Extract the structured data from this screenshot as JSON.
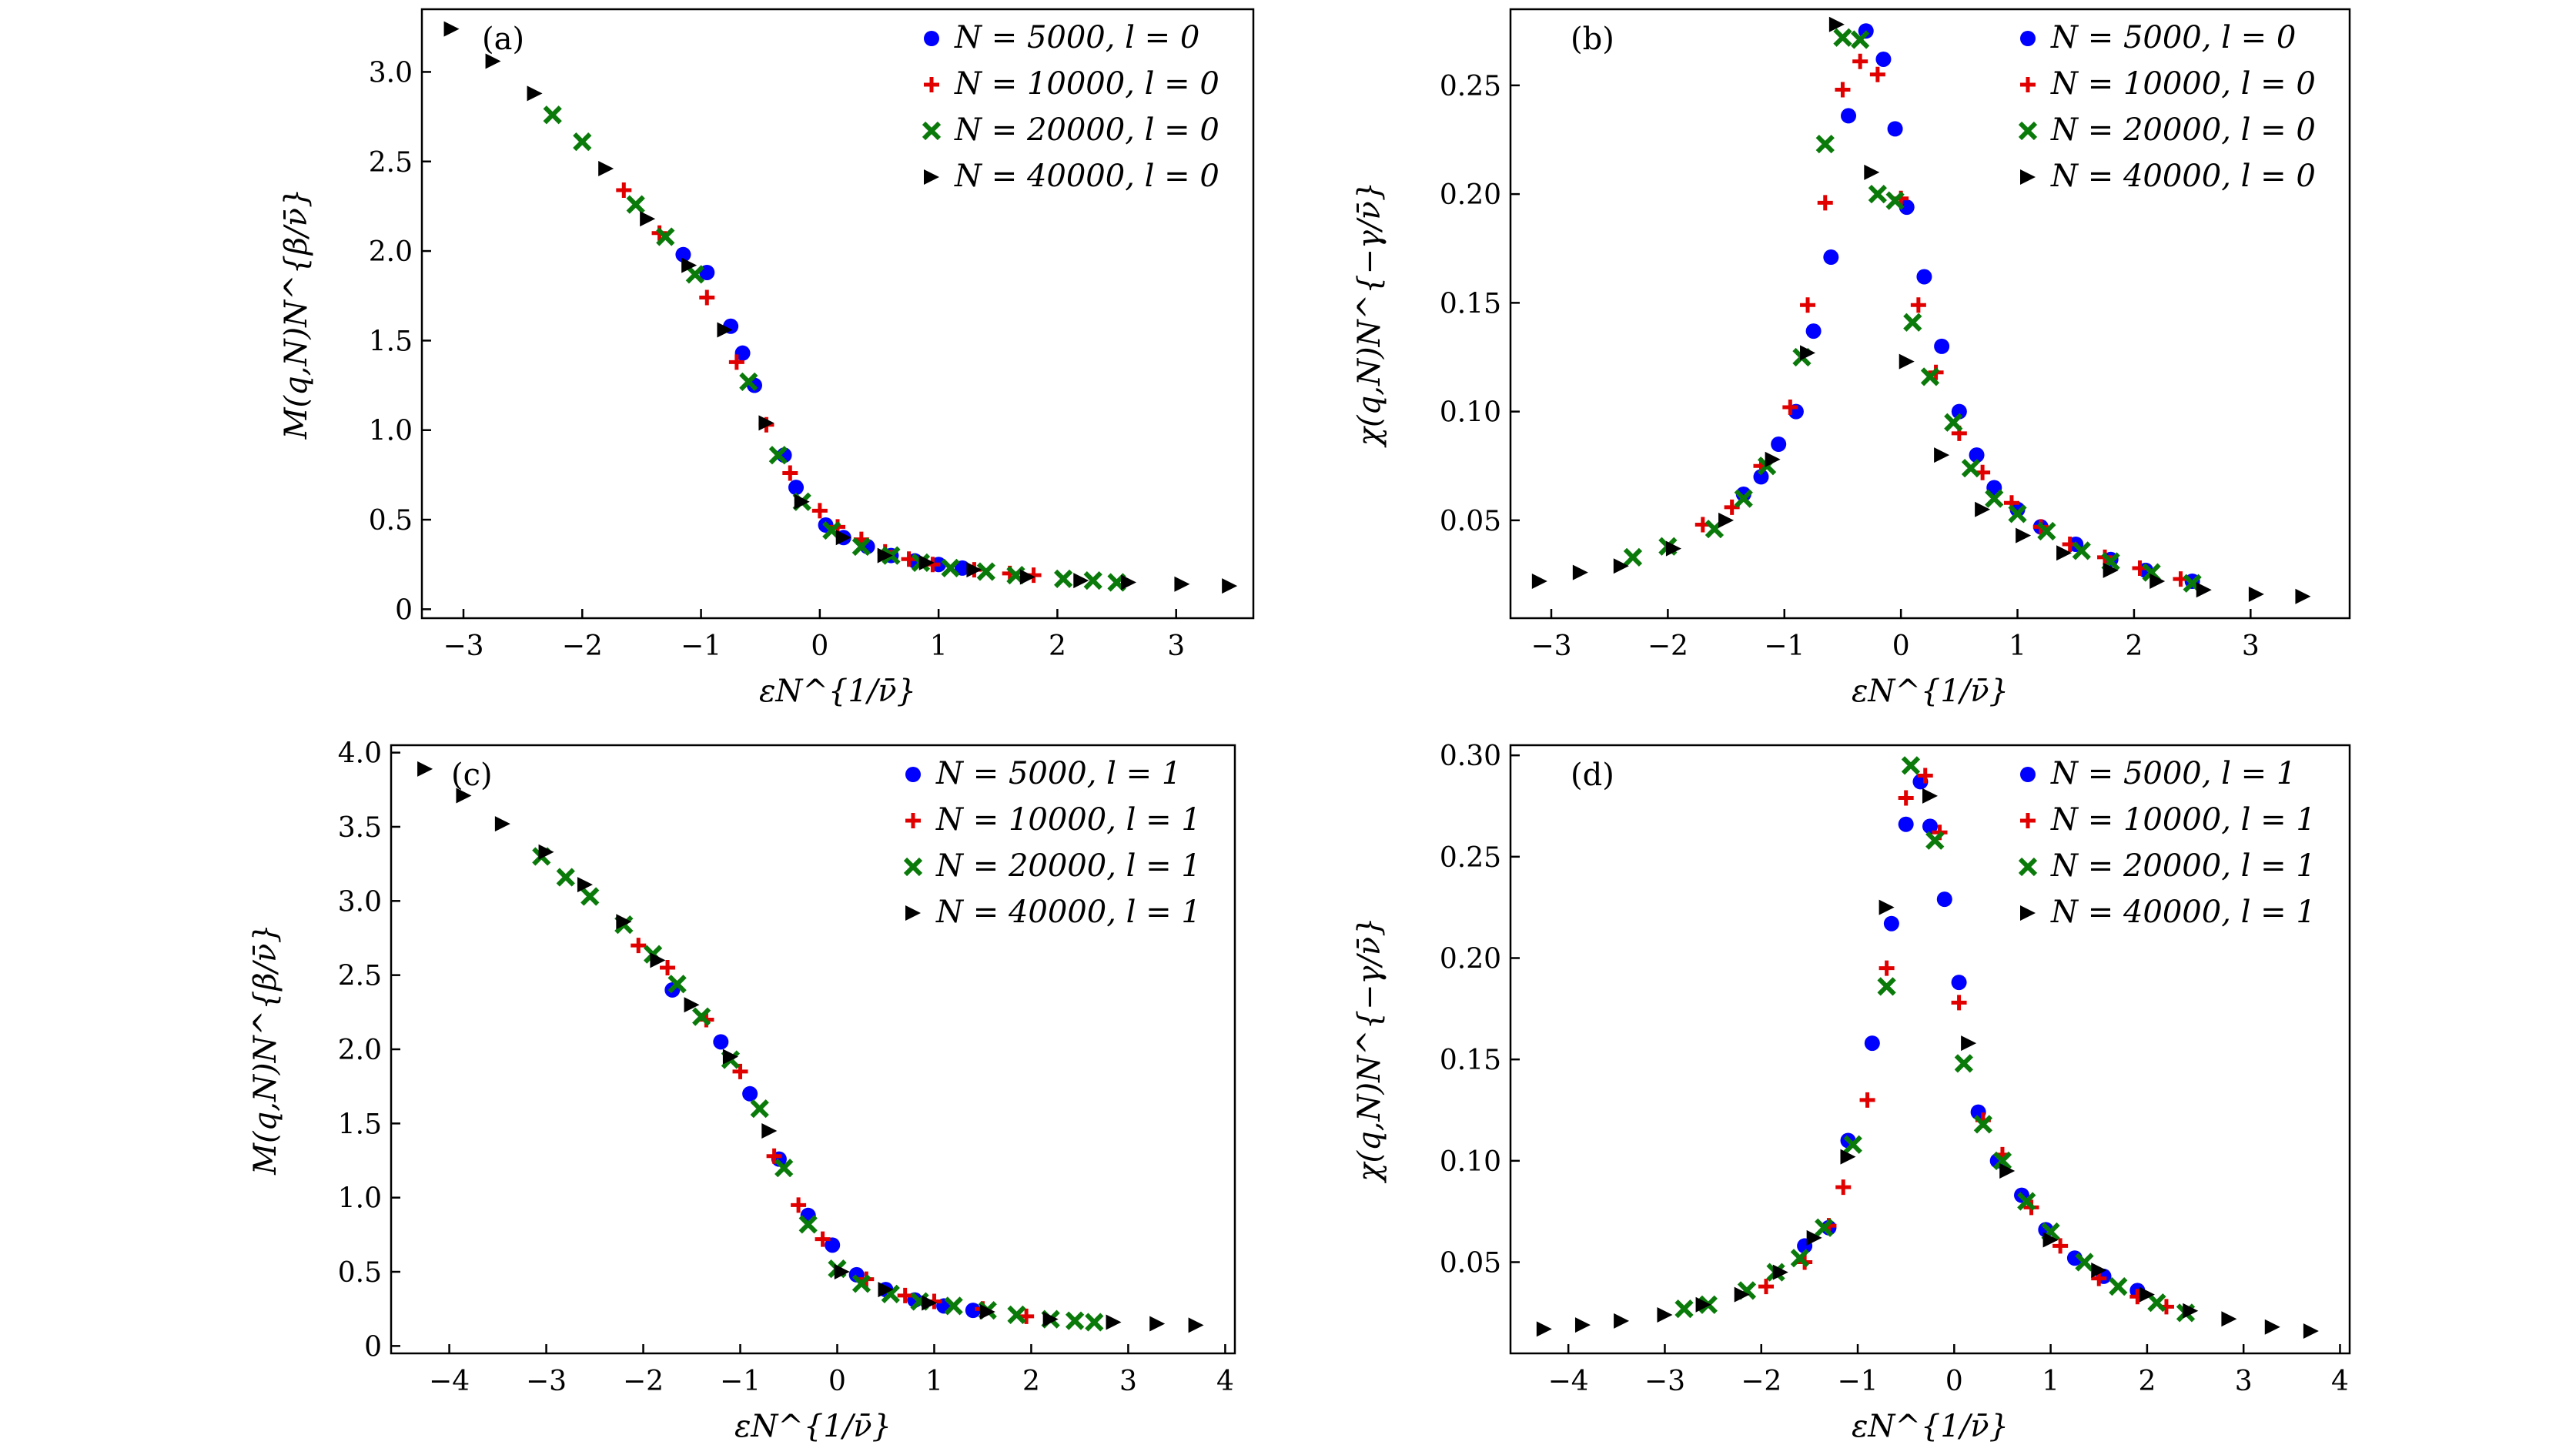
{
  "figure": {
    "panels": [
      {
        "id": "a",
        "label": "(a)"
      },
      {
        "id": "b",
        "label": "(b)"
      },
      {
        "id": "c",
        "label": "(c)"
      },
      {
        "id": "d",
        "label": "(d)"
      }
    ]
  },
  "chart_data": [
    {
      "panel": "(a)",
      "type": "scatter",
      "title": "",
      "xlabel": "εN^{1/ν̄}",
      "ylabel": "M(q,N)N^{β/ν̄}",
      "xlim": [
        -3.35,
        3.65
      ],
      "ylim": [
        -0.05,
        3.35
      ],
      "xticks": [
        -3,
        -2,
        -1,
        0,
        1,
        2,
        3
      ],
      "xtick_labels": [
        "−3",
        "−2",
        "−1",
        "0",
        "1",
        "2",
        "3"
      ],
      "yticks": [
        0,
        0.5,
        1.0,
        1.5,
        2.0,
        2.5,
        3.0
      ],
      "ytick_labels": [
        "0",
        "0.5",
        "1.0",
        "1.5",
        "2.0",
        "2.5",
        "3.0"
      ],
      "legend_position": "top-right",
      "series": [
        {
          "name": "N = 5000, l = 0",
          "marker": "circle",
          "color": "#0000ff",
          "x": [
            -1.15,
            -0.95,
            -0.75,
            -0.65,
            -0.55,
            -0.3,
            -0.2,
            0.05,
            0.2,
            0.4,
            0.6,
            0.8,
            1.0,
            1.2
          ],
          "y": [
            1.98,
            1.88,
            1.58,
            1.43,
            1.25,
            0.86,
            0.68,
            0.47,
            0.4,
            0.35,
            0.3,
            0.27,
            0.25,
            0.23
          ]
        },
        {
          "name": "N = 10000, l = 0",
          "marker": "plus",
          "color": "#e00000",
          "x": [
            -1.65,
            -1.35,
            -0.95,
            -0.7,
            -0.45,
            -0.25,
            0.0,
            0.15,
            0.35,
            0.55,
            0.75,
            0.95,
            1.3,
            1.6,
            1.8
          ],
          "y": [
            2.34,
            2.1,
            1.74,
            1.38,
            1.03,
            0.76,
            0.55,
            0.46,
            0.39,
            0.32,
            0.28,
            0.25,
            0.22,
            0.2,
            0.19
          ]
        },
        {
          "name": "N = 20000, l = 0",
          "marker": "x",
          "color": "#0a7a0a",
          "x": [
            -2.25,
            -2.0,
            -1.55,
            -1.3,
            -1.05,
            -0.6,
            -0.35,
            -0.15,
            0.1,
            0.35,
            0.6,
            0.85,
            1.1,
            1.4,
            1.65,
            2.05,
            2.3,
            2.5
          ],
          "y": [
            2.76,
            2.61,
            2.26,
            2.08,
            1.87,
            1.27,
            0.86,
            0.6,
            0.44,
            0.35,
            0.3,
            0.26,
            0.23,
            0.21,
            0.19,
            0.17,
            0.16,
            0.15
          ]
        },
        {
          "name": "N = 40000, l = 0",
          "marker": "triangle-right",
          "color": "#000000",
          "x": [
            -3.1,
            -2.75,
            -2.4,
            -1.8,
            -1.45,
            -1.1,
            -0.8,
            -0.45,
            -0.15,
            0.2,
            0.55,
            0.9,
            1.3,
            1.75,
            2.2,
            2.6,
            3.05,
            3.45
          ],
          "y": [
            3.24,
            3.06,
            2.88,
            2.46,
            2.18,
            1.92,
            1.56,
            1.04,
            0.6,
            0.4,
            0.3,
            0.26,
            0.22,
            0.18,
            0.16,
            0.15,
            0.14,
            0.13
          ]
        }
      ]
    },
    {
      "panel": "(b)",
      "type": "scatter",
      "title": "",
      "xlabel": "εN^{1/ν̄}",
      "ylabel": "χ(q,N)N^{−γ/ν̄}",
      "xlim": [
        -3.35,
        3.85
      ],
      "ylim": [
        0.005,
        0.285
      ],
      "xticks": [
        -3,
        -2,
        -1,
        0,
        1,
        2,
        3
      ],
      "xtick_labels": [
        "−3",
        "−2",
        "−1",
        "0",
        "1",
        "2",
        "3"
      ],
      "yticks": [
        0.05,
        0.1,
        0.15,
        0.2,
        0.25
      ],
      "ytick_labels": [
        "0.05",
        "0.10",
        "0.15",
        "0.20",
        "0.25"
      ],
      "legend_position": "top-right",
      "series": [
        {
          "name": "N = 5000, l = 0",
          "marker": "circle",
          "color": "#0000ff",
          "x": [
            -1.35,
            -1.2,
            -1.05,
            -0.9,
            -0.75,
            -0.6,
            -0.45,
            -0.3,
            -0.15,
            -0.05,
            0.05,
            0.2,
            0.35,
            0.5,
            0.65,
            0.8,
            1.0,
            1.2,
            1.5,
            1.8,
            2.1,
            2.5
          ],
          "y": [
            0.062,
            0.07,
            0.085,
            0.1,
            0.137,
            0.171,
            0.236,
            0.275,
            0.262,
            0.23,
            0.194,
            0.162,
            0.13,
            0.1,
            0.08,
            0.065,
            0.055,
            0.047,
            0.039,
            0.032,
            0.027,
            0.022
          ]
        },
        {
          "name": "N = 10000, l = 0",
          "marker": "plus",
          "color": "#e00000",
          "x": [
            -1.7,
            -1.45,
            -1.2,
            -0.95,
            -0.8,
            -0.65,
            -0.5,
            -0.35,
            -0.2,
            0.0,
            0.15,
            0.3,
            0.5,
            0.7,
            0.95,
            1.2,
            1.45,
            1.75,
            2.05,
            2.4
          ],
          "y": [
            0.048,
            0.056,
            0.075,
            0.102,
            0.149,
            0.196,
            0.248,
            0.261,
            0.255,
            0.198,
            0.149,
            0.118,
            0.09,
            0.072,
            0.058,
            0.047,
            0.039,
            0.033,
            0.028,
            0.023
          ]
        },
        {
          "name": "N = 20000, l = 0",
          "marker": "x",
          "color": "#0a7a0a",
          "x": [
            -2.3,
            -2.0,
            -1.6,
            -1.35,
            -1.15,
            -0.85,
            -0.65,
            -0.5,
            -0.35,
            -0.2,
            -0.05,
            0.1,
            0.25,
            0.45,
            0.6,
            0.8,
            1.0,
            1.25,
            1.55,
            1.8,
            2.15,
            2.5
          ],
          "y": [
            0.033,
            0.038,
            0.046,
            0.06,
            0.075,
            0.125,
            0.223,
            0.272,
            0.271,
            0.2,
            0.197,
            0.141,
            0.116,
            0.095,
            0.074,
            0.06,
            0.053,
            0.045,
            0.036,
            0.031,
            0.026,
            0.021
          ]
        },
        {
          "name": "N = 40000, l = 0",
          "marker": "triangle-right",
          "color": "#000000",
          "x": [
            -3.1,
            -2.75,
            -2.4,
            -1.95,
            -1.5,
            -1.1,
            -0.8,
            -0.55,
            -0.25,
            0.05,
            0.35,
            0.7,
            1.05,
            1.4,
            1.8,
            2.2,
            2.6,
            3.05,
            3.45
          ],
          "y": [
            0.022,
            0.026,
            0.029,
            0.037,
            0.05,
            0.078,
            0.127,
            0.278,
            0.21,
            0.123,
            0.08,
            0.055,
            0.043,
            0.035,
            0.027,
            0.022,
            0.018,
            0.016,
            0.015
          ]
        }
      ]
    },
    {
      "panel": "(c)",
      "type": "scatter",
      "title": "",
      "xlabel": "εN^{1/ν̄}",
      "ylabel": "M(q,N)N^{β/ν̄}",
      "xlim": [
        -4.6,
        4.1
      ],
      "ylim": [
        -0.05,
        4.05
      ],
      "xticks": [
        -4,
        -3,
        -2,
        -1,
        0,
        1,
        2,
        3,
        4
      ],
      "xtick_labels": [
        "−4",
        "−3",
        "−2",
        "−1",
        "0",
        "1",
        "2",
        "3",
        "4"
      ],
      "yticks": [
        0,
        0.5,
        1.0,
        1.5,
        2.0,
        2.5,
        3.0,
        3.5,
        4.0
      ],
      "ytick_labels": [
        "0",
        "0.5",
        "1.0",
        "1.5",
        "2.0",
        "2.5",
        "3.0",
        "3.5",
        "4.0"
      ],
      "legend_position": "top-right",
      "series": [
        {
          "name": "N = 5000, l = 1",
          "marker": "circle",
          "color": "#0000ff",
          "x": [
            -1.7,
            -1.2,
            -0.9,
            -0.6,
            -0.3,
            -0.05,
            0.2,
            0.5,
            0.8,
            1.1,
            1.4
          ],
          "y": [
            2.4,
            2.05,
            1.7,
            1.26,
            0.88,
            0.68,
            0.48,
            0.38,
            0.31,
            0.27,
            0.24
          ]
        },
        {
          "name": "N = 10000, l = 1",
          "marker": "plus",
          "color": "#e00000",
          "x": [
            -2.05,
            -1.75,
            -1.35,
            -1.0,
            -0.65,
            -0.4,
            -0.15,
            0.3,
            0.7,
            1.0,
            1.5,
            1.95
          ],
          "y": [
            2.7,
            2.55,
            2.2,
            1.85,
            1.28,
            0.95,
            0.72,
            0.45,
            0.34,
            0.3,
            0.25,
            0.2
          ]
        },
        {
          "name": "N = 20000, l = 1",
          "marker": "x",
          "color": "#0a7a0a",
          "x": [
            -3.05,
            -2.8,
            -2.55,
            -2.2,
            -1.9,
            -1.65,
            -1.4,
            -1.1,
            -0.8,
            -0.55,
            -0.3,
            0.0,
            0.25,
            0.55,
            0.85,
            1.2,
            1.55,
            1.85,
            2.2,
            2.45,
            2.65
          ],
          "y": [
            3.3,
            3.16,
            3.03,
            2.84,
            2.64,
            2.44,
            2.22,
            1.93,
            1.6,
            1.2,
            0.82,
            0.52,
            0.42,
            0.35,
            0.3,
            0.27,
            0.24,
            0.21,
            0.18,
            0.17,
            0.16
          ]
        },
        {
          "name": "N = 40000, l = 1",
          "marker": "triangle-right",
          "color": "#000000",
          "x": [
            -4.25,
            -3.85,
            -3.45,
            -3.0,
            -2.6,
            -2.2,
            -1.85,
            -1.5,
            -1.1,
            -0.7,
            0.05,
            0.5,
            0.95,
            1.55,
            2.2,
            2.85,
            3.3,
            3.7
          ],
          "y": [
            3.89,
            3.71,
            3.52,
            3.33,
            3.11,
            2.86,
            2.6,
            2.3,
            1.95,
            1.45,
            0.5,
            0.38,
            0.29,
            0.23,
            0.18,
            0.16,
            0.15,
            0.14
          ]
        }
      ]
    },
    {
      "panel": "(d)",
      "type": "scatter",
      "title": "",
      "xlabel": "εN^{1/ν̄}",
      "ylabel": "χ(q,N)N^{−γ/ν̄}",
      "xlim": [
        -4.6,
        4.1
      ],
      "ylim": [
        0.005,
        0.305
      ],
      "xticks": [
        -4,
        -3,
        -2,
        -1,
        0,
        1,
        2,
        3,
        4
      ],
      "xtick_labels": [
        "−4",
        "−3",
        "−2",
        "−1",
        "0",
        "1",
        "2",
        "3",
        "4"
      ],
      "yticks": [
        0.05,
        0.1,
        0.15,
        0.2,
        0.25,
        0.3
      ],
      "ytick_labels": [
        "0.05",
        "0.10",
        "0.15",
        "0.20",
        "0.25",
        "0.30"
      ],
      "legend_position": "top-right",
      "series": [
        {
          "name": "N = 5000, l = 1",
          "marker": "circle",
          "color": "#0000ff",
          "x": [
            -1.55,
            -1.3,
            -1.1,
            -0.85,
            -0.65,
            -0.5,
            -0.35,
            -0.25,
            -0.1,
            0.05,
            0.25,
            0.45,
            0.7,
            0.95,
            1.25,
            1.55,
            1.9
          ],
          "y": [
            0.058,
            0.067,
            0.11,
            0.158,
            0.217,
            0.266,
            0.287,
            0.265,
            0.229,
            0.188,
            0.124,
            0.1,
            0.083,
            0.066,
            0.052,
            0.043,
            0.036
          ]
        },
        {
          "name": "N = 10000, l = 1",
          "marker": "plus",
          "color": "#e00000",
          "x": [
            -1.95,
            -1.55,
            -1.3,
            -1.15,
            -0.9,
            -0.7,
            -0.5,
            -0.3,
            -0.15,
            0.05,
            0.3,
            0.5,
            0.8,
            1.1,
            1.5,
            1.9,
            2.2
          ],
          "y": [
            0.038,
            0.05,
            0.068,
            0.087,
            0.13,
            0.195,
            0.279,
            0.29,
            0.262,
            0.178,
            0.12,
            0.103,
            0.077,
            0.058,
            0.042,
            0.033,
            0.028
          ]
        },
        {
          "name": "N = 20000, l = 1",
          "marker": "x",
          "color": "#0a7a0a",
          "x": [
            -2.8,
            -2.55,
            -2.15,
            -1.85,
            -1.6,
            -1.35,
            -1.05,
            -0.7,
            -0.45,
            -0.2,
            0.1,
            0.3,
            0.5,
            0.75,
            1.0,
            1.35,
            1.7,
            2.1,
            2.4
          ],
          "y": [
            0.027,
            0.029,
            0.036,
            0.045,
            0.052,
            0.067,
            0.108,
            0.186,
            0.295,
            0.258,
            0.148,
            0.118,
            0.1,
            0.08,
            0.065,
            0.05,
            0.038,
            0.03,
            0.025
          ]
        },
        {
          "name": "N = 40000, l = 1",
          "marker": "triangle-right",
          "color": "#000000",
          "x": [
            -4.25,
            -3.85,
            -3.45,
            -3.0,
            -2.6,
            -2.2,
            -1.8,
            -1.45,
            -1.1,
            -0.7,
            -0.25,
            0.15,
            0.55,
            1.0,
            1.5,
            2.0,
            2.45,
            2.85,
            3.3,
            3.7
          ],
          "y": [
            0.017,
            0.019,
            0.021,
            0.024,
            0.029,
            0.034,
            0.045,
            0.062,
            0.102,
            0.225,
            0.28,
            0.158,
            0.095,
            0.061,
            0.046,
            0.034,
            0.026,
            0.022,
            0.018,
            0.016
          ]
        }
      ]
    }
  ]
}
